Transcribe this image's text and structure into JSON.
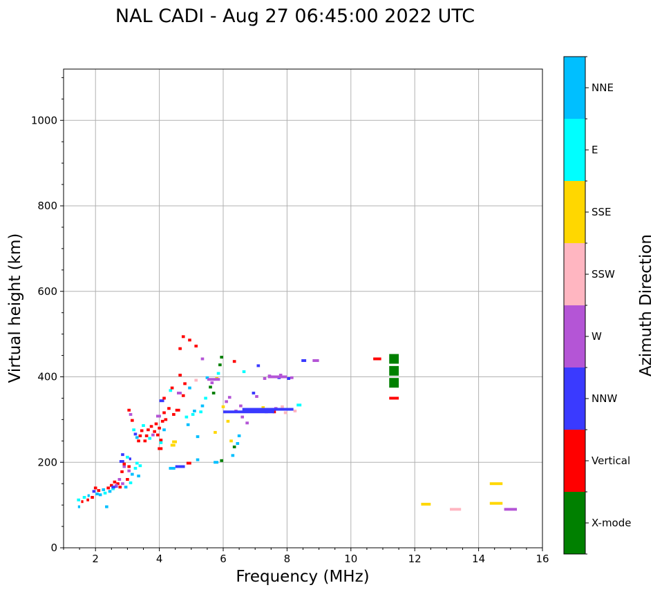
{
  "chart_data": {
    "type": "scatter",
    "title": "NAL CADI - Aug 27 06:45:00 2022 UTC",
    "xlabel": "Frequency (MHz)",
    "ylabel": "Virtual height (km)",
    "xlim": [
      1,
      16
    ],
    "ylim": [
      0,
      1120
    ],
    "xticks": [
      2,
      4,
      6,
      8,
      10,
      12,
      14,
      16
    ],
    "yticks": [
      0,
      200,
      400,
      600,
      800,
      1000
    ],
    "grid": true,
    "colorbar": {
      "label": "Azimuth Direction",
      "categories": [
        "X-mode",
        "Vertical",
        "NNW",
        "W",
        "SSW",
        "SSE",
        "E",
        "NNE"
      ],
      "colors": [
        "#008000",
        "#ff0000",
        "#3a3aff",
        "#b455d6",
        "#ffb6c1",
        "#ffd700",
        "#00ffff",
        "#00bfff"
      ]
    },
    "segment_note": "segments: [freq_start MHz, freq_end MHz, virtual height km, category]",
    "segments": [
      [
        1.42,
        1.52,
        112,
        "E"
      ],
      [
        1.45,
        1.52,
        96,
        "NNE"
      ],
      [
        1.55,
        1.62,
        108,
        "Vertical"
      ],
      [
        1.6,
        1.7,
        118,
        "E"
      ],
      [
        1.72,
        1.8,
        112,
        "Vertical"
      ],
      [
        1.75,
        1.82,
        122,
        "NNE"
      ],
      [
        1.85,
        1.95,
        118,
        "Vertical"
      ],
      [
        1.9,
        2.0,
        132,
        "NNW"
      ],
      [
        1.95,
        2.05,
        140,
        "Vertical"
      ],
      [
        2.0,
        2.1,
        126,
        "NNE"
      ],
      [
        2.05,
        2.15,
        134,
        "Vertical"
      ],
      [
        2.1,
        2.2,
        124,
        "NNE"
      ],
      [
        2.2,
        2.3,
        136,
        "NNE"
      ],
      [
        2.25,
        2.35,
        128,
        "E"
      ],
      [
        2.3,
        2.4,
        96,
        "NNE"
      ],
      [
        2.35,
        2.45,
        140,
        "Vertical"
      ],
      [
        2.4,
        2.5,
        132,
        "NNE"
      ],
      [
        2.45,
        2.55,
        146,
        "Vertical"
      ],
      [
        2.5,
        2.6,
        138,
        "E"
      ],
      [
        2.55,
        2.65,
        154,
        "Vertical"
      ],
      [
        2.6,
        2.7,
        144,
        "NNW"
      ],
      [
        2.65,
        2.75,
        150,
        "Vertical"
      ],
      [
        2.7,
        2.8,
        160,
        "W"
      ],
      [
        2.72,
        2.82,
        142,
        "Vertical"
      ],
      [
        2.78,
        2.88,
        178,
        "Vertical"
      ],
      [
        2.8,
        2.9,
        150,
        "W"
      ],
      [
        2.85,
        2.95,
        190,
        "W"
      ],
      [
        2.9,
        3.0,
        142,
        "NNE"
      ],
      [
        2.95,
        3.05,
        160,
        "Vertical"
      ],
      [
        3.0,
        3.1,
        180,
        "W"
      ],
      [
        3.05,
        3.15,
        152,
        "E"
      ],
      [
        3.1,
        3.2,
        172,
        "NNE"
      ],
      [
        3.2,
        3.3,
        186,
        "E"
      ],
      [
        3.25,
        3.35,
        198,
        "E"
      ],
      [
        3.3,
        3.4,
        168,
        "NNE"
      ],
      [
        3.35,
        3.45,
        192,
        "E"
      ],
      [
        2.8,
        2.9,
        218,
        "NNW"
      ],
      [
        2.75,
        2.9,
        202,
        "NNW"
      ],
      [
        2.95,
        3.05,
        212,
        "E"
      ],
      [
        2.85,
        2.95,
        196,
        "Vertical"
      ],
      [
        3.0,
        3.1,
        190,
        "Vertical"
      ],
      [
        3.05,
        3.12,
        208,
        "NNW"
      ],
      [
        2.6,
        2.7,
        146,
        "W"
      ],
      [
        2.5,
        2.62,
        142,
        "NNW"
      ],
      [
        3.0,
        3.1,
        322,
        "Vertical"
      ],
      [
        3.05,
        3.15,
        312,
        "W"
      ],
      [
        3.1,
        3.2,
        298,
        "Vertical"
      ],
      [
        3.15,
        3.25,
        276,
        "E"
      ],
      [
        3.2,
        3.3,
        266,
        "NNW"
      ],
      [
        3.25,
        3.35,
        258,
        "NNE"
      ],
      [
        3.3,
        3.4,
        250,
        "Vertical"
      ],
      [
        3.35,
        3.45,
        262,
        "Vertical"
      ],
      [
        3.4,
        3.5,
        274,
        "Vertical"
      ],
      [
        3.45,
        3.55,
        286,
        "E"
      ],
      [
        3.5,
        3.6,
        250,
        "Vertical"
      ],
      [
        3.55,
        3.65,
        262,
        "Vertical"
      ],
      [
        3.6,
        3.7,
        276,
        "Vertical"
      ],
      [
        3.65,
        3.75,
        256,
        "E"
      ],
      [
        3.7,
        3.8,
        284,
        "Vertical"
      ],
      [
        3.75,
        3.85,
        264,
        "W"
      ],
      [
        3.8,
        3.9,
        272,
        "Vertical"
      ],
      [
        3.85,
        3.95,
        290,
        "Vertical"
      ],
      [
        3.9,
        4.0,
        264,
        "Vertical"
      ],
      [
        3.95,
        4.05,
        280,
        "Vertical"
      ],
      [
        4.0,
        4.1,
        252,
        "Vertical"
      ],
      [
        4.05,
        4.15,
        296,
        "Vertical"
      ],
      [
        4.1,
        4.2,
        276,
        "NNE"
      ],
      [
        4.15,
        4.25,
        300,
        "Vertical"
      ],
      [
        3.95,
        4.1,
        232,
        "Vertical"
      ],
      [
        4.0,
        4.1,
        246,
        "E"
      ],
      [
        4.1,
        4.2,
        316,
        "Vertical"
      ],
      [
        4.25,
        4.35,
        326,
        "Vertical"
      ],
      [
        3.9,
        4.05,
        308,
        "W"
      ],
      [
        4.0,
        4.15,
        344,
        "NNW"
      ],
      [
        4.1,
        4.2,
        350,
        "Vertical"
      ],
      [
        4.3,
        4.4,
        368,
        "E"
      ],
      [
        4.35,
        4.45,
        374,
        "Vertical"
      ],
      [
        4.4,
        4.5,
        312,
        "Vertical"
      ],
      [
        4.35,
        4.5,
        240,
        "SSE"
      ],
      [
        4.4,
        4.55,
        248,
        "SSE"
      ],
      [
        4.5,
        4.65,
        322,
        "Vertical"
      ],
      [
        4.55,
        4.7,
        362,
        "W"
      ],
      [
        4.6,
        4.7,
        404,
        "Vertical"
      ],
      [
        4.7,
        4.8,
        356,
        "Vertical"
      ],
      [
        4.75,
        4.85,
        384,
        "Vertical"
      ],
      [
        4.8,
        4.9,
        306,
        "E"
      ],
      [
        4.85,
        4.95,
        288,
        "NNE"
      ],
      [
        4.9,
        5.0,
        374,
        "NNE"
      ],
      [
        5.0,
        5.1,
        312,
        "E"
      ],
      [
        5.05,
        5.15,
        320,
        "NNE"
      ],
      [
        5.1,
        5.2,
        392,
        "SSW"
      ],
      [
        5.15,
        5.25,
        260,
        "NNE"
      ],
      [
        5.25,
        5.35,
        318,
        "E"
      ],
      [
        5.3,
        5.4,
        332,
        "NNE"
      ],
      [
        5.4,
        5.5,
        350,
        "E"
      ],
      [
        5.45,
        5.55,
        398,
        "NNE"
      ],
      [
        5.55,
        5.65,
        376,
        "X-mode"
      ],
      [
        5.6,
        5.7,
        386,
        "W"
      ],
      [
        5.65,
        5.75,
        362,
        "X-mode"
      ],
      [
        5.7,
        5.8,
        270,
        "SSE"
      ],
      [
        5.75,
        5.85,
        396,
        "SSE"
      ],
      [
        5.8,
        5.9,
        408,
        "E"
      ],
      [
        5.85,
        5.95,
        428,
        "X-mode"
      ],
      [
        5.9,
        6.0,
        446,
        "X-mode"
      ],
      [
        5.95,
        6.05,
        330,
        "SSE"
      ],
      [
        6.0,
        6.1,
        318,
        "SSW"
      ],
      [
        6.05,
        6.15,
        342,
        "W"
      ],
      [
        6.1,
        6.2,
        296,
        "SSE"
      ],
      [
        6.15,
        6.25,
        352,
        "W"
      ],
      [
        6.2,
        6.3,
        250,
        "SSE"
      ],
      [
        6.25,
        6.35,
        216,
        "NNE"
      ],
      [
        6.3,
        6.4,
        236,
        "X-mode"
      ],
      [
        6.35,
        6.45,
        320,
        "W"
      ],
      [
        6.4,
        6.5,
        244,
        "NNE"
      ],
      [
        6.45,
        6.55,
        262,
        "NNE"
      ],
      [
        6.5,
        6.6,
        332,
        "W"
      ],
      [
        6.55,
        6.65,
        306,
        "W"
      ],
      [
        6.6,
        6.7,
        412,
        "E"
      ],
      [
        6.7,
        6.8,
        292,
        "W"
      ],
      [
        6.8,
        6.9,
        320,
        "NNW"
      ],
      [
        6.9,
        7.0,
        362,
        "NNW"
      ],
      [
        7.0,
        7.1,
        354,
        "W"
      ],
      [
        7.05,
        7.15,
        426,
        "NNW"
      ],
      [
        7.1,
        7.2,
        322,
        "W"
      ],
      [
        7.2,
        7.3,
        328,
        "SSE"
      ],
      [
        7.25,
        7.35,
        396,
        "W"
      ],
      [
        7.3,
        7.4,
        318,
        "W"
      ],
      [
        7.4,
        7.5,
        402,
        "W"
      ],
      [
        7.5,
        7.6,
        324,
        "NNW"
      ],
      [
        7.55,
        7.65,
        318,
        "Vertical"
      ],
      [
        7.6,
        7.7,
        326,
        "W"
      ],
      [
        7.7,
        7.8,
        398,
        "NNW"
      ],
      [
        7.75,
        7.85,
        404,
        "W"
      ],
      [
        7.8,
        7.9,
        330,
        "SSW"
      ],
      [
        7.9,
        8.0,
        316,
        "SSW"
      ],
      [
        8.0,
        8.1,
        396,
        "NNW"
      ],
      [
        8.1,
        8.2,
        398,
        "W"
      ],
      [
        8.2,
        8.3,
        320,
        "SSW"
      ],
      [
        8.3,
        8.45,
        334,
        "E"
      ],
      [
        8.45,
        8.6,
        438,
        "NNW"
      ],
      [
        8.8,
        9.0,
        438,
        "W"
      ],
      [
        10.7,
        10.95,
        442,
        "Vertical"
      ],
      [
        5.5,
        5.9,
        394,
        "W"
      ],
      [
        6.0,
        7.6,
        318,
        "NNW"
      ],
      [
        6.6,
        8.2,
        324,
        "NNW"
      ],
      [
        7.4,
        8.0,
        400,
        "W"
      ],
      [
        4.3,
        4.5,
        186,
        "NNE"
      ],
      [
        4.5,
        4.8,
        190,
        "NNW"
      ],
      [
        4.85,
        5.0,
        198,
        "Vertical"
      ],
      [
        5.15,
        5.25,
        206,
        "NNE"
      ],
      [
        5.7,
        5.85,
        200,
        "NNE"
      ],
      [
        5.9,
        6.0,
        204,
        "X-mode"
      ],
      [
        4.7,
        4.8,
        494,
        "Vertical"
      ],
      [
        4.9,
        5.0,
        486,
        "Vertical"
      ],
      [
        5.1,
        5.2,
        472,
        "Vertical"
      ],
      [
        4.6,
        4.7,
        466,
        "Vertical"
      ],
      [
        5.3,
        5.4,
        442,
        "W"
      ],
      [
        6.3,
        6.4,
        436,
        "Vertical"
      ],
      [
        11.2,
        11.5,
        442,
        "X-mode"
      ],
      [
        11.2,
        11.5,
        414,
        "X-mode"
      ],
      [
        11.2,
        11.5,
        386,
        "X-mode"
      ],
      [
        11.2,
        11.5,
        350,
        "Vertical"
      ],
      [
        12.2,
        12.5,
        102,
        "SSE"
      ],
      [
        13.1,
        13.45,
        90,
        "SSW"
      ],
      [
        14.35,
        14.75,
        150,
        "SSE"
      ],
      [
        14.35,
        14.75,
        104,
        "SSE"
      ],
      [
        14.8,
        15.2,
        90,
        "W"
      ]
    ]
  }
}
